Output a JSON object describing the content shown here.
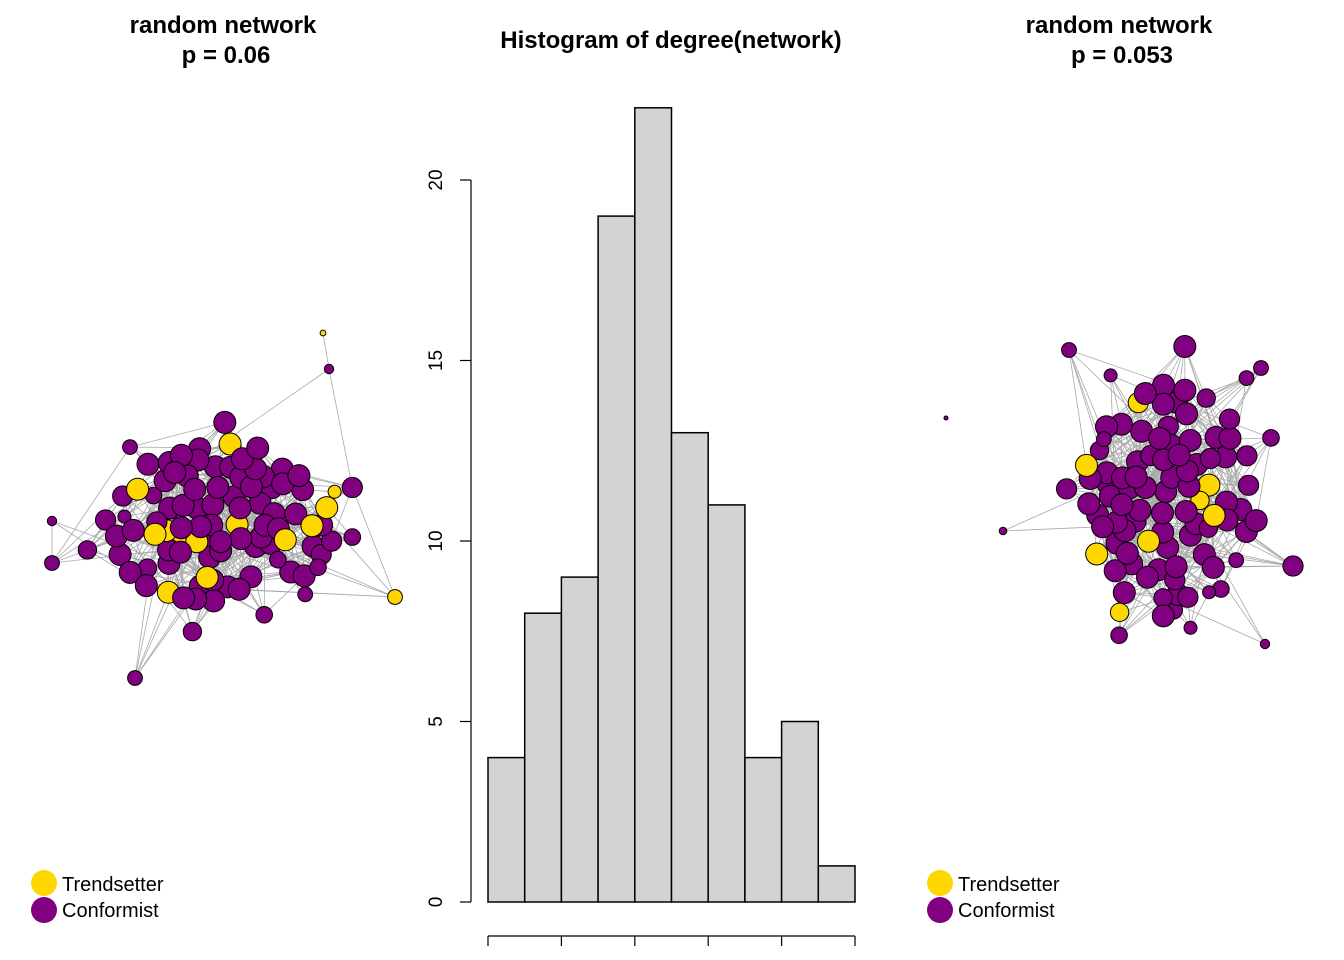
{
  "colors": {
    "trendsetter": "#FFD700",
    "conformist": "#800080",
    "bar_fill": "#D3D3D3",
    "edge": "#A9A9A9",
    "outline": "#000000"
  },
  "left_panel": {
    "title_line1": "random network",
    "title_line2": "p = 0.06",
    "legend": [
      {
        "label": "Trendsetter",
        "type": "trendsetter"
      },
      {
        "label": "Conformist",
        "type": "conformist"
      }
    ]
  },
  "right_panel": {
    "title_line1": "random network",
    "title_line2": "p = 0.053",
    "legend": [
      {
        "label": "Trendsetter",
        "type": "trendsetter"
      },
      {
        "label": "Conformist",
        "type": "conformist"
      }
    ]
  },
  "chart_data": [
    {
      "type": "network",
      "title": "random network\np = 0.06",
      "node_types": [
        "Trendsetter",
        "Conformist"
      ],
      "edge_probability": 0.06
    },
    {
      "type": "bar",
      "title": "Histogram of degree(network)",
      "xlabel": "",
      "ylabel": "",
      "bin_count": 10,
      "values": [
        4,
        8,
        9,
        19,
        22,
        13,
        11,
        4,
        5,
        1
      ],
      "ylim": [
        0,
        22
      ],
      "yticks": [
        0,
        5,
        10,
        15,
        20
      ],
      "grid": false
    },
    {
      "type": "network",
      "title": "random network\np = 0.053",
      "node_types": [
        "Trendsetter",
        "Conformist"
      ],
      "edge_probability": 0.053
    }
  ]
}
